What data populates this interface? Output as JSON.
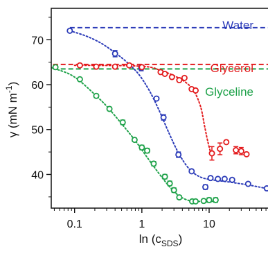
{
  "chart_data": {
    "type": "scatter",
    "xscale": "log",
    "xlim": [
      0.045,
      75
    ],
    "ylim": [
      32.5,
      77
    ],
    "xticks": [
      0.1,
      1,
      10
    ],
    "xtick_labels": [
      "0.1",
      "1",
      "10"
    ],
    "yticks": [
      40,
      50,
      60,
      70
    ],
    "ytick_labels": [
      "40",
      "50",
      "60",
      "70"
    ],
    "xlabel": {
      "main": "ln (c",
      "sub": "SDS",
      "tail": ")"
    },
    "ylabel": {
      "main": "γ (mN m",
      "sup": "-1",
      "tail": ")"
    },
    "grid": false,
    "legend": "inline-right",
    "series": [
      {
        "name": "Water",
        "color": "#2b3bb8",
        "reference_level": 72.7,
        "points": [
          {
            "x": 0.085,
            "y": 72.0
          },
          {
            "x": 0.4,
            "y": 66.9,
            "err": 0.7
          },
          {
            "x": 0.98,
            "y": 63.7,
            "err": 0.6
          },
          {
            "x": 1.65,
            "y": 56.9
          },
          {
            "x": 2.1,
            "y": 52.7,
            "err": 0.6
          },
          {
            "x": 3.5,
            "y": 44.4,
            "err": 0.6
          },
          {
            "x": 5.5,
            "y": 40.7
          },
          {
            "x": 8.8,
            "y": 37.2,
            "err": 0.5
          },
          {
            "x": 10.5,
            "y": 39.2
          },
          {
            "x": 13.5,
            "y": 39.0
          },
          {
            "x": 17.0,
            "y": 39.0
          },
          {
            "x": 22.0,
            "y": 38.8
          },
          {
            "x": 38.0,
            "y": 37.9
          },
          {
            "x": 72.0,
            "y": 36.9
          }
        ]
      },
      {
        "name": "Glycerol",
        "color": "#e31a1c",
        "reference_level": 64.5,
        "points": [
          {
            "x": 0.12,
            "y": 64.3
          },
          {
            "x": 0.21,
            "y": 64.0
          },
          {
            "x": 0.4,
            "y": 64.0
          },
          {
            "x": 0.65,
            "y": 64.3
          },
          {
            "x": 1.0,
            "y": 63.9
          },
          {
            "x": 1.9,
            "y": 62.8
          },
          {
            "x": 2.2,
            "y": 62.4
          },
          {
            "x": 2.8,
            "y": 61.7
          },
          {
            "x": 3.6,
            "y": 61.0
          },
          {
            "x": 4.3,
            "y": 61.5
          },
          {
            "x": 5.5,
            "y": 59.0
          },
          {
            "x": 6.3,
            "y": 58.7
          },
          {
            "x": 11.0,
            "y": 44.7,
            "err": 1.5
          },
          {
            "x": 14.5,
            "y": 45.7,
            "err": 1.3
          },
          {
            "x": 18.0,
            "y": 47.2
          },
          {
            "x": 25.0,
            "y": 45.4,
            "err": 0.8
          },
          {
            "x": 30.0,
            "y": 45.2,
            "err": 0.8
          },
          {
            "x": 36.0,
            "y": 44.5
          }
        ]
      },
      {
        "name": "Glyceline",
        "color": "#1fa24a",
        "reference_level": 63.5,
        "points": [
          {
            "x": 0.052,
            "y": 63.9
          },
          {
            "x": 0.12,
            "y": 61.2
          },
          {
            "x": 0.21,
            "y": 57.5,
            "err": 0.4
          },
          {
            "x": 0.33,
            "y": 54.6,
            "err": 0.4
          },
          {
            "x": 0.52,
            "y": 51.6,
            "err": 0.5
          },
          {
            "x": 0.78,
            "y": 47.7,
            "err": 0.4
          },
          {
            "x": 1.0,
            "y": 46.0,
            "err": 0.5
          },
          {
            "x": 1.2,
            "y": 45.3,
            "err": 0.5
          },
          {
            "x": 1.5,
            "y": 42.4,
            "err": 0.5
          },
          {
            "x": 2.2,
            "y": 39.5,
            "err": 0.5
          },
          {
            "x": 2.6,
            "y": 38.0,
            "err": 0.5
          },
          {
            "x": 3.0,
            "y": 36.5,
            "err": 0.5
          },
          {
            "x": 3.6,
            "y": 34.9,
            "err": 0.4
          },
          {
            "x": 5.6,
            "y": 34.0
          },
          {
            "x": 6.3,
            "y": 34.0
          },
          {
            "x": 8.3,
            "y": 34.1
          },
          {
            "x": 10.0,
            "y": 34.3,
            "err": 0.5
          },
          {
            "x": 12.5,
            "y": 34.3,
            "err": 0.5
          }
        ],
        "fit": [
          [
            0.045,
            63.8
          ],
          [
            0.08,
            62.5
          ],
          [
            0.12,
            60.8
          ],
          [
            0.2,
            57.8
          ],
          [
            0.3,
            55.2
          ],
          [
            0.5,
            51.3
          ],
          [
            0.8,
            47.5
          ],
          [
            1.2,
            43.8
          ],
          [
            1.8,
            40.2
          ],
          [
            2.6,
            37.2
          ],
          [
            3.6,
            35.2
          ],
          [
            5.0,
            34.2
          ],
          [
            7.0,
            34.0
          ],
          [
            10.0,
            34.0
          ],
          [
            13.0,
            34.0
          ]
        ]
      }
    ],
    "water_fit": [
      [
        0.085,
        72.0
      ],
      [
        0.15,
        70.8
      ],
      [
        0.25,
        69.2
      ],
      [
        0.4,
        67.1
      ],
      [
        0.6,
        65.0
      ],
      [
        0.9,
        62.3
      ],
      [
        1.3,
        58.6
      ],
      [
        1.8,
        54.3
      ],
      [
        2.5,
        49.4
      ],
      [
        3.5,
        44.8
      ],
      [
        5.0,
        41.3
      ],
      [
        7.0,
        39.6
      ],
      [
        10.0,
        38.9
      ],
      [
        20.0,
        38.3
      ],
      [
        40.0,
        37.6
      ],
      [
        75.0,
        36.8
      ]
    ],
    "glycerol_fit": [
      [
        0.1,
        64.3
      ],
      [
        1.0,
        64.1
      ],
      [
        2.0,
        63.0
      ],
      [
        3.0,
        62.0
      ],
      [
        4.5,
        60.5
      ],
      [
        6.0,
        58.5
      ],
      [
        7.5,
        55.0
      ],
      [
        8.5,
        51.0
      ],
      [
        9.5,
        47.5
      ],
      [
        10.5,
        45.0
      ],
      [
        11.0,
        44.7
      ]
    ]
  }
}
